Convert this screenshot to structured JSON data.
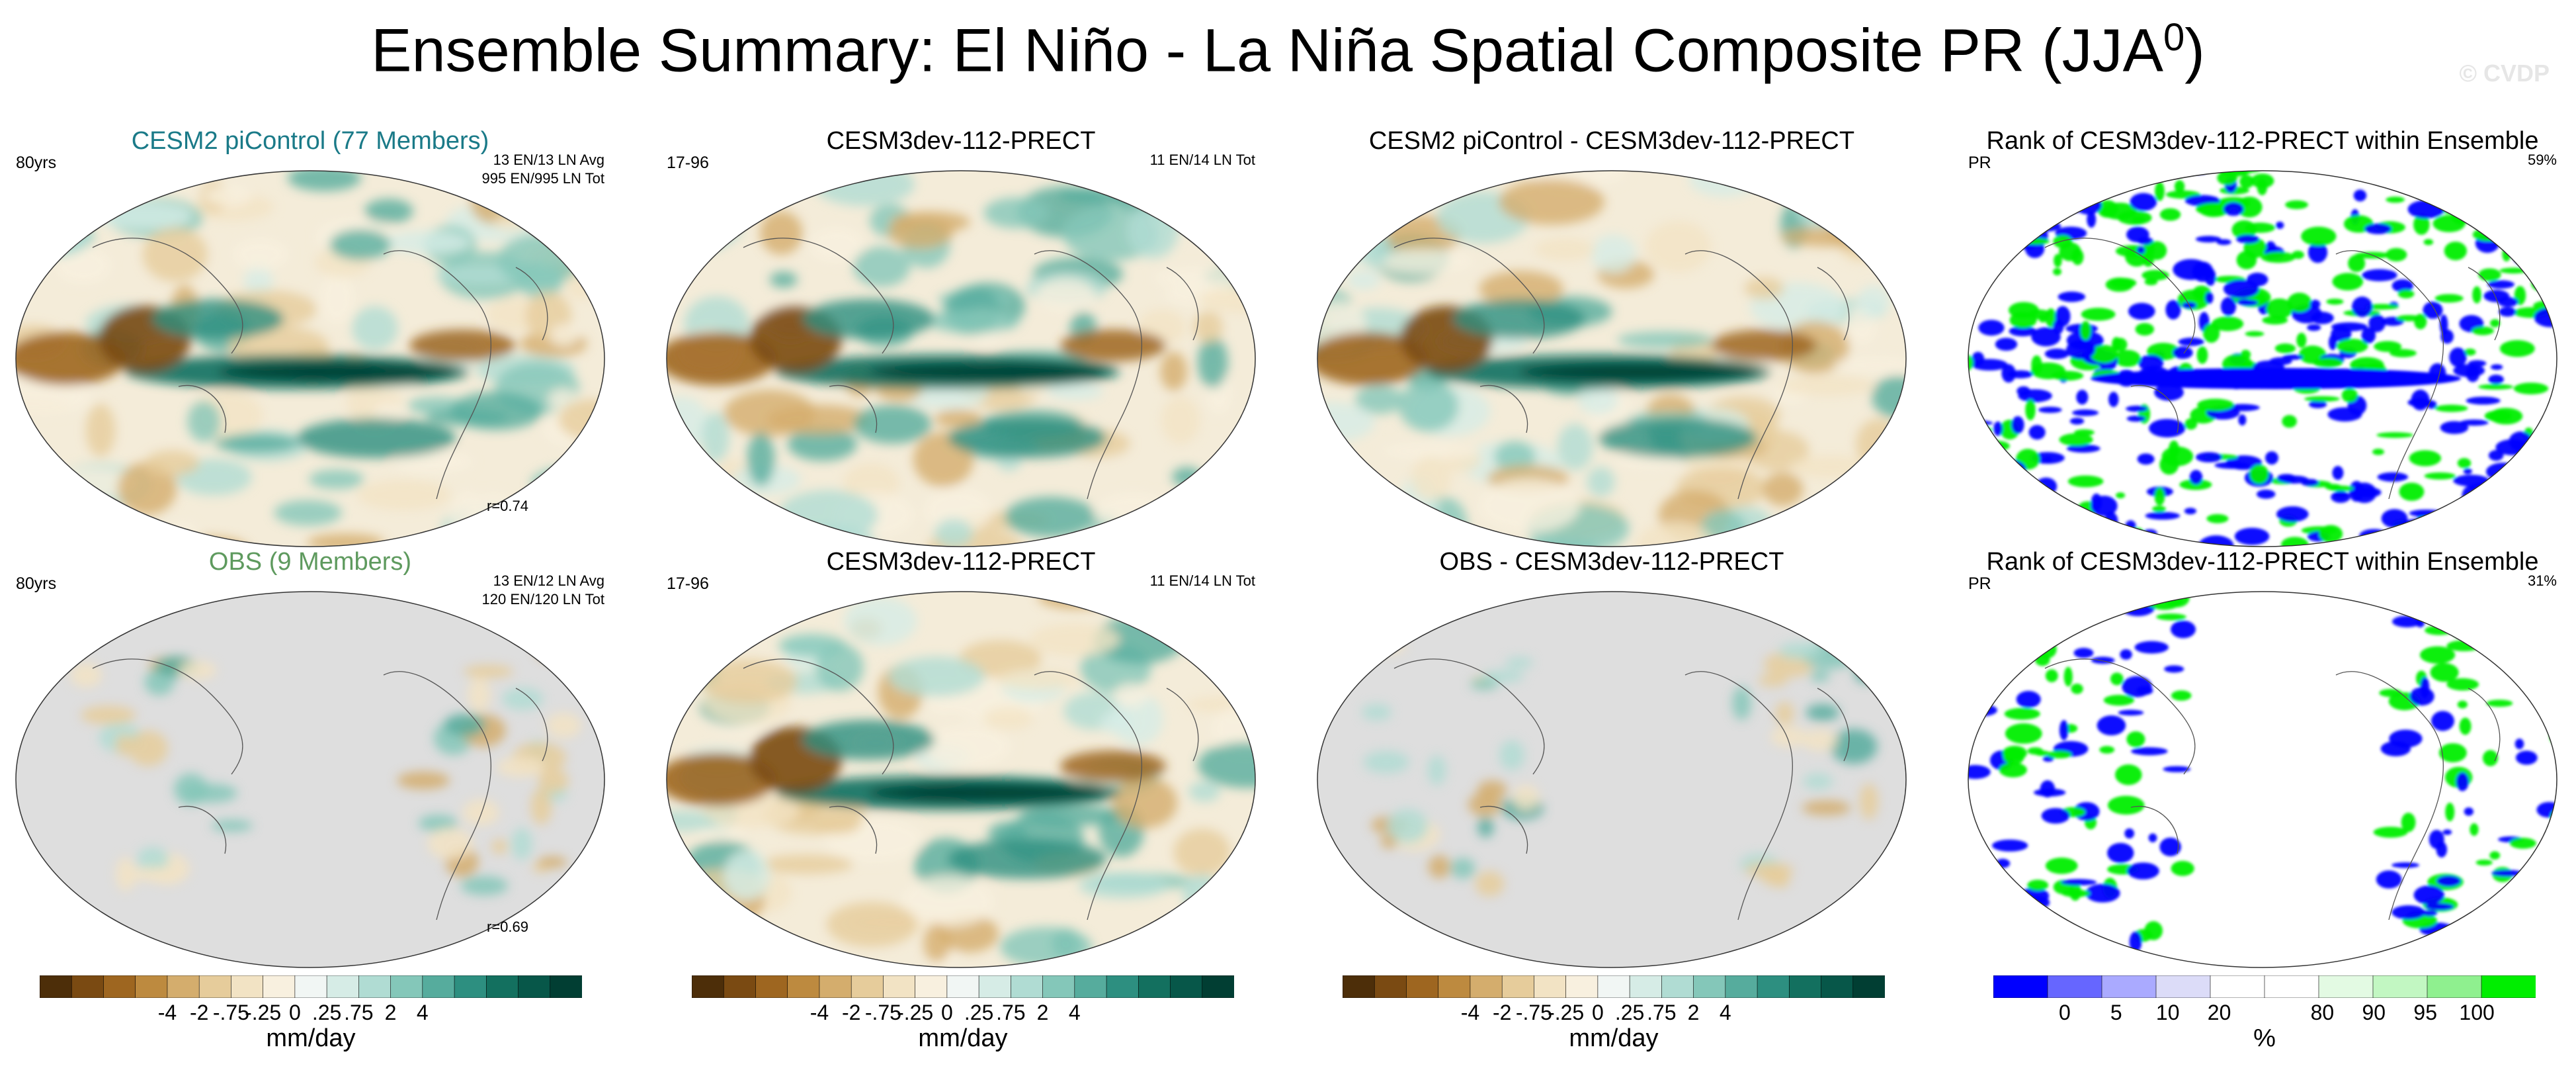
{
  "title": {
    "main": "Ensemble Summary: El Niño - La Niña Spatial Composite PR (JJA",
    "superscript": "0",
    "close": ")"
  },
  "watermark": "© CVDP",
  "panels": {
    "p1": {
      "title": "CESM2 piControl (77 Members)",
      "left": "80yrs",
      "right1": "13 EN/13 LN Avg",
      "right2": "995 EN/995 LN Tot",
      "corr": "r=0.74"
    },
    "p2": {
      "title": "CESM3dev-112-PRECT",
      "left": "17-96",
      "right1": "11 EN/14 LN Tot"
    },
    "p3": {
      "title": "CESM2 piControl - CESM3dev-112-PRECT"
    },
    "p4": {
      "title": "Rank of CESM3dev-112-PRECT within Ensemble",
      "left": "PR",
      "pct": "59%"
    },
    "p5": {
      "title": "OBS (9 Members)",
      "left": "80yrs",
      "right1": "13 EN/12 LN Avg",
      "right2": "120 EN/120 LN Tot",
      "corr": "r=0.69"
    },
    "p6": {
      "title": "CESM3dev-112-PRECT",
      "left": "17-96",
      "right1": "11 EN/14 LN Tot"
    },
    "p7": {
      "title": "OBS - CESM3dev-112-PRECT"
    },
    "p8": {
      "title": "Rank of CESM3dev-112-PRECT within Ensemble",
      "left": "PR",
      "pct": "31%"
    }
  },
  "colorbar_mm": {
    "colors": [
      "#4d2e09",
      "#7a4a12",
      "#9e6620",
      "#bd8a3f",
      "#d4ad6d",
      "#e6cc9b",
      "#f2e3c4",
      "#f8f0df",
      "#f1f6f4",
      "#d6ece6",
      "#b0dcd3",
      "#84c7b9",
      "#56ac9d",
      "#2d8f80",
      "#13705f",
      "#075749",
      "#013e33"
    ],
    "ticks": [
      "-4",
      "-2",
      "-.75",
      "-.25",
      "0",
      ".25",
      ".75",
      "2",
      "4"
    ],
    "unit": "mm/day"
  },
  "colorbar_rank": {
    "colors": [
      "#0000ff",
      "#6666ff",
      "#aaaaff",
      "#dcdcf8",
      "#ffffff",
      "#ffffff",
      "#e3fae3",
      "#c2f7c2",
      "#8ff08f",
      "#00ee00"
    ],
    "ticks": [
      "0",
      "5",
      "10",
      "20",
      "80",
      "90",
      "95",
      "100"
    ],
    "unit": "%"
  }
}
